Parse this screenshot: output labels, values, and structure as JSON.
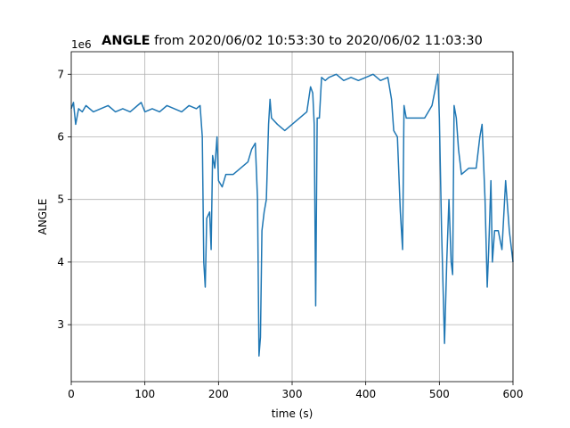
{
  "chart_data": {
    "type": "line",
    "title_bold": "ANGLE",
    "title_rest": " from 2020/06/02 10:53:30 to 2020/06/02 11:03:30",
    "y_offset_label": "1e6",
    "xlabel": "time (s)",
    "ylabel": "ANGLE",
    "xlim": [
      0,
      600
    ],
    "xticks": [
      0,
      100,
      200,
      300,
      400,
      500,
      600
    ],
    "ylim": [
      2.09,
      7.36
    ],
    "yticks": [
      3,
      4,
      5,
      6,
      7
    ],
    "grid": true,
    "x": [
      0,
      3,
      6,
      10,
      15,
      20,
      30,
      40,
      50,
      60,
      70,
      80,
      90,
      95,
      100,
      110,
      120,
      130,
      140,
      150,
      160,
      170,
      175,
      178,
      180,
      182,
      184,
      188,
      190,
      192,
      195,
      198,
      200,
      205,
      210,
      220,
      230,
      240,
      245,
      250,
      253,
      255,
      257,
      259,
      262,
      265,
      268,
      270,
      272,
      280,
      290,
      300,
      310,
      320,
      325,
      328,
      330,
      332,
      334,
      337,
      340,
      345,
      350,
      360,
      370,
      380,
      390,
      400,
      410,
      420,
      430,
      435,
      438,
      443,
      447,
      450,
      452,
      455,
      460,
      470,
      480,
      490,
      495,
      498,
      500,
      503,
      507,
      510,
      513,
      516,
      518,
      520,
      523,
      526,
      530,
      540,
      550,
      555,
      558,
      562,
      565,
      567,
      570,
      572,
      575,
      580,
      585,
      590,
      595,
      600
    ],
    "series": [
      {
        "name": "ANGLE",
        "color": "#1f77b4",
        "values": [
          6.45,
          6.55,
          6.2,
          6.45,
          6.4,
          6.5,
          6.4,
          6.45,
          6.5,
          6.4,
          6.45,
          6.4,
          6.5,
          6.55,
          6.4,
          6.45,
          6.4,
          6.5,
          6.45,
          6.4,
          6.5,
          6.45,
          6.5,
          6.0,
          4.0,
          3.6,
          4.7,
          4.8,
          4.2,
          5.7,
          5.5,
          6.0,
          5.3,
          5.2,
          5.4,
          5.4,
          5.5,
          5.6,
          5.8,
          5.9,
          5.0,
          2.5,
          2.8,
          4.5,
          4.8,
          5.0,
          6.2,
          6.6,
          6.3,
          6.2,
          6.1,
          6.2,
          6.3,
          6.4,
          6.8,
          6.7,
          6.2,
          3.3,
          6.3,
          6.3,
          6.95,
          6.9,
          6.95,
          7.0,
          6.9,
          6.95,
          6.9,
          6.95,
          7.0,
          6.9,
          6.95,
          6.6,
          6.1,
          6.0,
          4.8,
          4.2,
          6.5,
          6.3,
          6.3,
          6.3,
          6.3,
          6.5,
          6.8,
          7.0,
          6.3,
          4.5,
          2.7,
          4.0,
          5.0,
          4.0,
          3.8,
          6.5,
          6.3,
          5.8,
          5.4,
          5.5,
          5.5,
          6.0,
          6.2,
          5.0,
          3.6,
          4.2,
          5.3,
          4.0,
          4.5,
          4.5,
          4.2,
          5.3,
          4.5,
          4.0
        ]
      }
    ]
  }
}
